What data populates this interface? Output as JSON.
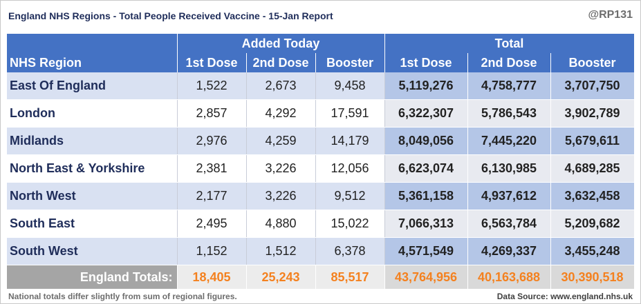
{
  "title": "England NHS Regions - Total People Received Vaccine - 15-Jan Report",
  "handle": "@RP131",
  "note": "National totals differ slightly from sum of regional figures.",
  "source": "Data Source: www.england.nhs.uk",
  "chart_data": {
    "type": "table",
    "group_headers": [
      "Added Today",
      "Total"
    ],
    "columns": [
      "NHS Region",
      "1st Dose",
      "2nd Dose",
      "Booster",
      "1st Dose",
      "2nd Dose",
      "Booster"
    ],
    "rows": [
      {
        "region": "East Of England",
        "today": [
          "1,522",
          "2,673",
          "9,458"
        ],
        "total": [
          "5,119,276",
          "4,758,777",
          "3,707,750"
        ]
      },
      {
        "region": "London",
        "today": [
          "2,857",
          "4,292",
          "17,591"
        ],
        "total": [
          "6,322,307",
          "5,786,543",
          "3,902,789"
        ]
      },
      {
        "region": "Midlands",
        "today": [
          "2,976",
          "4,259",
          "14,179"
        ],
        "total": [
          "8,049,056",
          "7,445,220",
          "5,679,611"
        ]
      },
      {
        "region": "North East & Yorkshire",
        "today": [
          "2,381",
          "3,226",
          "12,056"
        ],
        "total": [
          "6,623,074",
          "6,130,985",
          "4,689,285"
        ]
      },
      {
        "region": "North West",
        "today": [
          "2,177",
          "3,226",
          "9,512"
        ],
        "total": [
          "5,361,158",
          "4,937,612",
          "3,632,458"
        ]
      },
      {
        "region": "South East",
        "today": [
          "2,495",
          "4,880",
          "15,022"
        ],
        "total": [
          "7,066,313",
          "6,563,784",
          "5,209,682"
        ]
      },
      {
        "region": "South West",
        "today": [
          "1,152",
          "1,512",
          "6,378"
        ],
        "total": [
          "4,571,549",
          "4,269,337",
          "3,455,248"
        ]
      }
    ],
    "totals": {
      "label": "England Totals:",
      "today": [
        "18,405",
        "25,243",
        "85,517"
      ],
      "total": [
        "43,764,956",
        "40,163,688",
        "30,390,518"
      ]
    }
  }
}
